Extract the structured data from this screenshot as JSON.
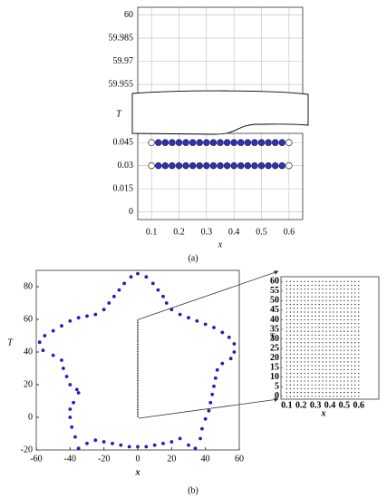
{
  "chart_data": [
    {
      "type": "broken-scatter",
      "caption": "(a)",
      "xlabel": "x",
      "ylabel": "T",
      "xlim": [
        0.05,
        0.65
      ],
      "xticks": [
        0.1,
        0.2,
        0.3,
        0.4,
        0.5,
        0.6
      ],
      "ylim_top": [
        59.948,
        60.005
      ],
      "yticks_top": [
        59.955,
        59.97,
        59.985,
        60
      ],
      "ylim_bottom": [
        -0.005,
        0.051
      ],
      "yticks_bottom": [
        0,
        0.015,
        0.03,
        0.045
      ],
      "grid": true,
      "color": "#2f2fc4",
      "boundary_color": "#ffffff",
      "x": [
        0.1,
        0.125,
        0.15,
        0.175,
        0.2,
        0.225,
        0.25,
        0.275,
        0.3,
        0.325,
        0.35,
        0.375,
        0.4,
        0.425,
        0.45,
        0.475,
        0.5,
        0.525,
        0.55,
        0.575,
        0.6
      ],
      "rows": [
        0.045,
        0.03
      ]
    },
    {
      "type": "scatter",
      "caption": "(b)",
      "xlabel": "x",
      "ylabel": "T",
      "xlim": [
        -60,
        60
      ],
      "xticks": [
        -60,
        -40,
        -20,
        0,
        20,
        40,
        60
      ],
      "ylim": [
        -20,
        90
      ],
      "yticks": [
        -20,
        0,
        20,
        40,
        60,
        80
      ],
      "grid": false,
      "points": {
        "color": "#1f1fbf",
        "x": [
          0,
          5,
          9,
          12,
          15,
          17,
          20,
          25,
          30,
          35,
          40,
          45,
          50,
          54,
          57,
          57,
          55,
          50,
          47,
          46,
          45,
          44,
          43,
          42,
          40,
          38,
          37,
          34,
          30,
          25,
          20,
          15,
          10,
          5,
          0,
          -5,
          -10,
          -15,
          -20,
          -25,
          -30,
          -35,
          -37,
          -39,
          -40,
          -40,
          -38,
          -35,
          -36,
          -40,
          -42,
          -44,
          -45,
          -50,
          -56,
          -58,
          -55,
          -50,
          -45,
          -40,
          -35,
          -30,
          -25,
          -20,
          -17,
          -14,
          -11,
          -8,
          -4
        ],
        "y": [
          88,
          86,
          82,
          78,
          74,
          70,
          66,
          63,
          61,
          59,
          57,
          55,
          52,
          49,
          45,
          40,
          36,
          33,
          29,
          24,
          19,
          14,
          9,
          4,
          -1,
          -7,
          -13,
          -19,
          -17,
          -13,
          -15,
          -16,
          -17,
          -18,
          -18,
          -18,
          -17,
          -16,
          -15,
          -14,
          -16,
          -19,
          -12,
          -6,
          0,
          5,
          9,
          15,
          17,
          20,
          25,
          30,
          35,
          38,
          41,
          46,
          50,
          53,
          56,
          59,
          61,
          62,
          63,
          66,
          70,
          74,
          78,
          82,
          86
        ]
      },
      "segment": {
        "color": "#000000",
        "x": [
          0,
          0
        ],
        "y": [
          0,
          60
        ]
      }
    },
    {
      "type": "dot-grid",
      "xlabel": "x",
      "ylabel": "T",
      "xlim": [
        0.06,
        0.74
      ],
      "xticks": [
        0.1,
        0.2,
        0.3,
        0.4,
        0.5,
        0.6
      ],
      "ylim": [
        -1.5,
        62.5
      ],
      "yticks": [
        0,
        5,
        10,
        15,
        20,
        25,
        30,
        35,
        40,
        45,
        50,
        55,
        60
      ],
      "color": "#000000",
      "x": [
        0.1,
        0.125,
        0.15,
        0.175,
        0.2,
        0.225,
        0.25,
        0.275,
        0.3,
        0.325,
        0.35,
        0.375,
        0.4,
        0.425,
        0.45,
        0.475,
        0.5,
        0.525,
        0.55,
        0.575,
        0.6
      ],
      "T": [
        0,
        2,
        4,
        6,
        8,
        10,
        12,
        14,
        16,
        18,
        20,
        22,
        24,
        26,
        28,
        30,
        32,
        34,
        36,
        38,
        40,
        42,
        44,
        46,
        48,
        50,
        52,
        54,
        56,
        58,
        60
      ]
    }
  ]
}
